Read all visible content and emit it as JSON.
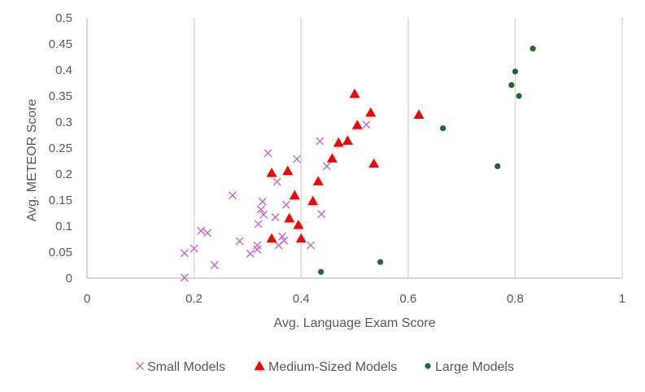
{
  "chart_data": {
    "type": "scatter",
    "title": "",
    "xlabel": "Avg. Language Exam Score",
    "ylabel": "Avg. METEOR Score",
    "xlim": [
      0,
      1
    ],
    "ylim": [
      0,
      0.5
    ],
    "x_ticks": [
      0,
      0.2,
      0.4,
      0.6,
      0.8,
      1
    ],
    "x_tick_labels": [
      "0",
      "0.2",
      "0.4",
      "0.6",
      "0.8",
      "1"
    ],
    "y_ticks": [
      0,
      0.05,
      0.1,
      0.15,
      0.2,
      0.25,
      0.3,
      0.35,
      0.4,
      0.45,
      0.5
    ],
    "y_tick_labels": [
      "0",
      "0.05",
      "0.1",
      "0.15",
      "0.2",
      "0.25",
      "0.3",
      "0.35",
      "0.4",
      "0.45",
      "0.5"
    ],
    "grid": "vertical",
    "legend_position": "bottom",
    "series": [
      {
        "name": "Small Models",
        "marker": "x",
        "color": "#cc66cc",
        "points": [
          [
            0.182,
            0.048
          ],
          [
            0.182,
            0.001
          ],
          [
            0.2,
            0.057
          ],
          [
            0.213,
            0.091
          ],
          [
            0.225,
            0.087
          ],
          [
            0.238,
            0.025
          ],
          [
            0.272,
            0.159
          ],
          [
            0.285,
            0.071
          ],
          [
            0.305,
            0.047
          ],
          [
            0.318,
            0.063
          ],
          [
            0.318,
            0.055
          ],
          [
            0.32,
            0.104
          ],
          [
            0.325,
            0.132
          ],
          [
            0.328,
            0.147
          ],
          [
            0.33,
            0.122
          ],
          [
            0.338,
            0.24
          ],
          [
            0.352,
            0.117
          ],
          [
            0.355,
            0.185
          ],
          [
            0.358,
            0.063
          ],
          [
            0.365,
            0.08
          ],
          [
            0.368,
            0.072
          ],
          [
            0.372,
            0.141
          ],
          [
            0.392,
            0.229
          ],
          [
            0.418,
            0.063
          ],
          [
            0.435,
            0.263
          ],
          [
            0.438,
            0.123
          ],
          [
            0.448,
            0.215
          ],
          [
            0.522,
            0.295
          ]
        ]
      },
      {
        "name": "Medium-Sized Models",
        "marker": "triangle",
        "color": "#ff0000",
        "points": [
          [
            0.345,
            0.076
          ],
          [
            0.345,
            0.202
          ],
          [
            0.375,
            0.206
          ],
          [
            0.378,
            0.115
          ],
          [
            0.388,
            0.159
          ],
          [
            0.395,
            0.102
          ],
          [
            0.4,
            0.076
          ],
          [
            0.422,
            0.148
          ],
          [
            0.432,
            0.186
          ],
          [
            0.458,
            0.23
          ],
          [
            0.47,
            0.26
          ],
          [
            0.487,
            0.264
          ],
          [
            0.5,
            0.354
          ],
          [
            0.505,
            0.294
          ],
          [
            0.53,
            0.318
          ],
          [
            0.536,
            0.22
          ],
          [
            0.62,
            0.314
          ]
        ]
      },
      {
        "name": "Large Models",
        "marker": "circle",
        "color": "#1e6b2a",
        "points": [
          [
            0.437,
            0.012
          ],
          [
            0.548,
            0.031
          ],
          [
            0.665,
            0.288
          ],
          [
            0.767,
            0.215
          ],
          [
            0.793,
            0.371
          ],
          [
            0.8,
            0.397
          ],
          [
            0.807,
            0.35
          ],
          [
            0.833,
            0.441
          ]
        ]
      }
    ]
  }
}
